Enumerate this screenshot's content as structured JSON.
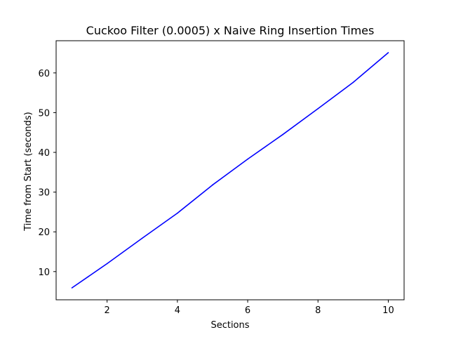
{
  "chart_data": {
    "type": "line",
    "title": "Cuckoo Filter (0.0005) x Naive Ring Insertion Times",
    "xlabel": "Sections",
    "ylabel": "Time from Start (seconds)",
    "x": [
      1,
      2,
      3,
      4,
      5,
      6,
      7,
      8,
      9,
      10
    ],
    "series": [
      {
        "values": [
          5.9,
          12.0,
          18.4,
          24.7,
          31.8,
          38.3,
          44.5,
          51.0,
          57.6,
          65.1
        ],
        "color": "#0000ff"
      }
    ],
    "xlim": [
      0.55,
      10.45
    ],
    "ylim": [
      2.9,
      68.1
    ],
    "xticks": [
      2,
      4,
      6,
      8,
      10
    ],
    "yticks": [
      10,
      20,
      30,
      40,
      50,
      60
    ],
    "grid": false,
    "legend": "none"
  }
}
